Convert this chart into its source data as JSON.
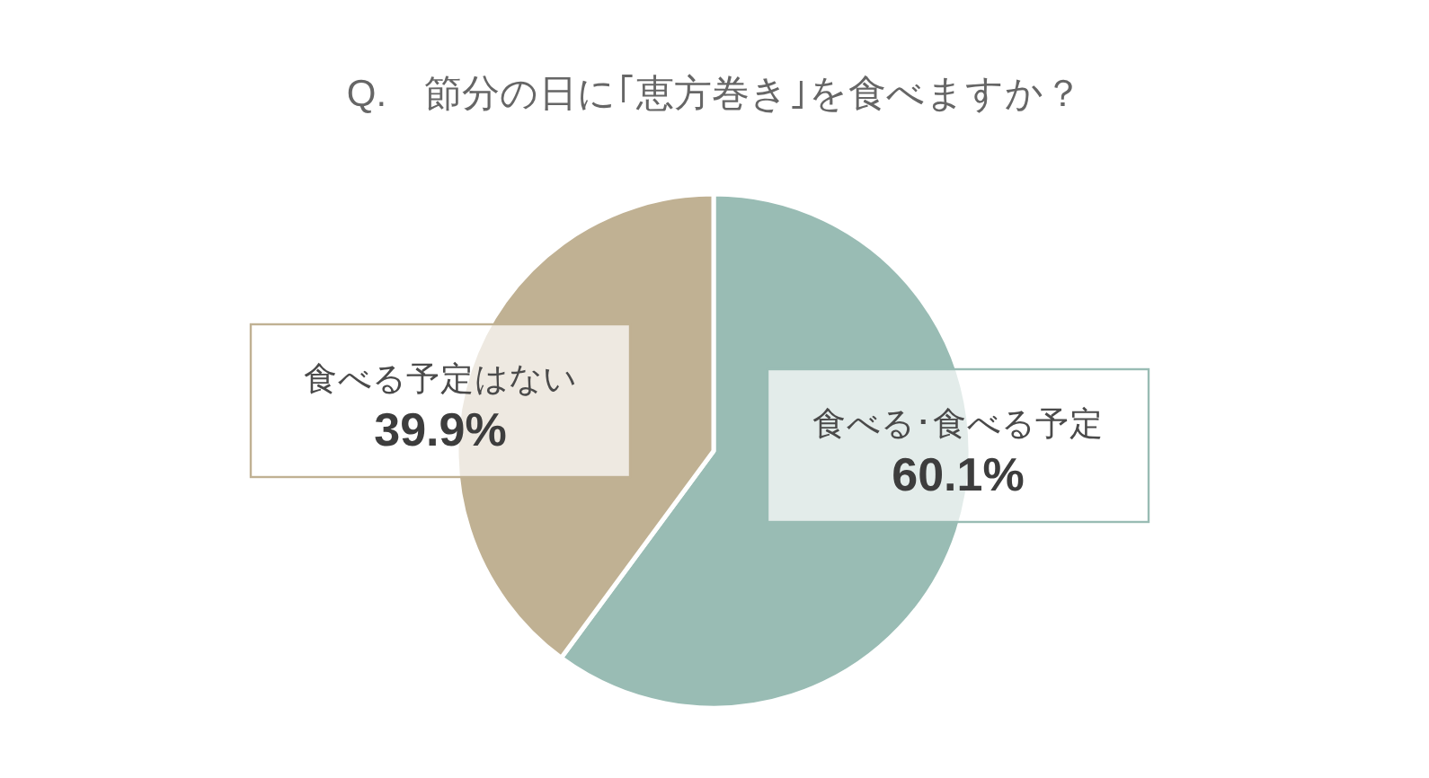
{
  "chart_data": {
    "type": "pie",
    "title": "Q.　節分の日に｢恵方巻き｣を食べますか？",
    "categories": [
      "食べる･食べる予定",
      "食べる予定はない"
    ],
    "values": [
      60.1,
      39.9
    ],
    "value_labels": [
      "60.1%",
      "39.9%"
    ],
    "colors": [
      "#99bcb4",
      "#c0b193"
    ]
  }
}
